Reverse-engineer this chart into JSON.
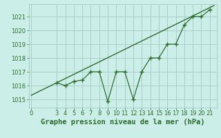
{
  "title": "Graphe pression niveau de la mer (hPa)",
  "bg_color": "#cceee8",
  "grid_color": "#aaccc8",
  "line_color": "#2d6b2d",
  "x_data": [
    3,
    4,
    5,
    6,
    7,
    8,
    9,
    10,
    11,
    12,
    13,
    14,
    15,
    16,
    17,
    18,
    19,
    20,
    21
  ],
  "y_data": [
    1016.2,
    1016.0,
    1016.3,
    1016.4,
    1017.0,
    1017.0,
    1014.85,
    1017.0,
    1017.0,
    1015.0,
    1017.0,
    1018.0,
    1018.0,
    1019.0,
    1019.0,
    1020.4,
    1021.0,
    1021.0,
    1021.5
  ],
  "trend_x": [
    0,
    21.5
  ],
  "trend_y": [
    1015.3,
    1021.8
  ],
  "xlim": [
    -0.3,
    21.8
  ],
  "ylim": [
    1014.4,
    1021.9
  ],
  "yticks": [
    1015,
    1016,
    1017,
    1018,
    1019,
    1020,
    1021
  ],
  "xticks": [
    0,
    3,
    4,
    5,
    6,
    7,
    8,
    9,
    10,
    11,
    12,
    13,
    14,
    15,
    16,
    17,
    18,
    19,
    20,
    21
  ],
  "title_fontsize": 7.5,
  "tick_fontsize": 6.0,
  "marker_size": 2.8
}
